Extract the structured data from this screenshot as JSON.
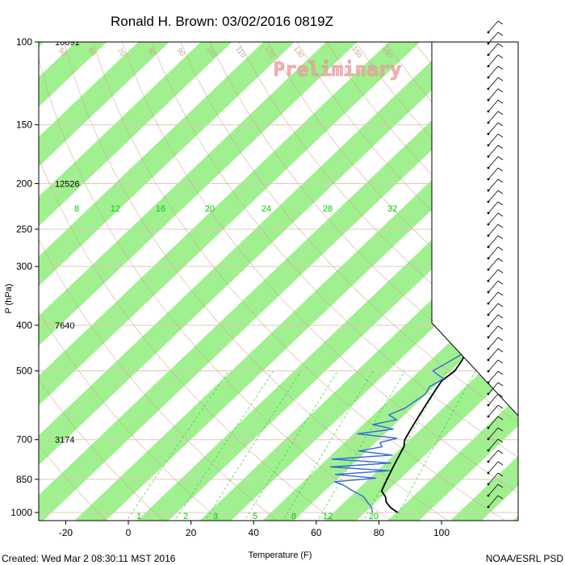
{
  "chart_data": {
    "type": "line",
    "title": "Ronald H. Brown: 03/02/2016 0819Z",
    "xlabel": "Temperature (F)",
    "ylabel": "P (hPa)",
    "watermark": "Preliminary",
    "xlim": [
      -30,
      125
    ],
    "ylim": [
      1050,
      100
    ],
    "y_scale": "log",
    "x_ticks": [
      -20,
      0,
      20,
      40,
      60,
      80,
      100
    ],
    "y_ticks": [
      100,
      150,
      200,
      250,
      300,
      400,
      500,
      700,
      850,
      1000
    ],
    "height_labels": [
      {
        "p": 100,
        "label": "16691"
      },
      {
        "p": 200,
        "label": "12526"
      },
      {
        "p": 400,
        "label": "7640"
      },
      {
        "p": 700,
        "label": "3174"
      }
    ],
    "mixing_ratio_labels": [
      "8",
      "12",
      "16",
      "20",
      "24",
      "28",
      "32"
    ],
    "mixing_ratio_bottom_labels": [
      "1",
      "2",
      "3",
      "5",
      "8",
      "12",
      "20"
    ],
    "theta_labels": [
      "50",
      "60",
      "70",
      "80",
      "90",
      "100",
      "110",
      "120",
      "130",
      "150",
      "160"
    ],
    "isotherm_labels": [
      "30",
      "20",
      "10",
      "0",
      "10",
      "20",
      "30"
    ],
    "colors": {
      "temperature": "#000000",
      "dewpoint": "#3366dd",
      "bands": "#a0f090",
      "mixing_ratio": "#33cc33",
      "dry_adiabat": "#c8a58a",
      "isobar": "#e0c8b8"
    },
    "series": [
      {
        "p": [
          1000,
          975,
          950,
          925,
          900,
          875,
          850,
          825,
          800,
          775,
          750,
          725,
          700,
          675,
          650,
          625,
          600,
          575,
          550,
          525,
          500,
          475,
          450,
          425,
          400,
          375,
          350,
          325,
          300,
          275,
          250,
          225,
          200,
          175,
          150,
          125,
          110,
          100
        ],
        "values": [
          86,
          82,
          79,
          77,
          74,
          73,
          72,
          71,
          70,
          69,
          68,
          67,
          65,
          64,
          63,
          62,
          61,
          60,
          59,
          58,
          59,
          58,
          56,
          54,
          53,
          52,
          50,
          49,
          48,
          46,
          43,
          39,
          32,
          29,
          29,
          28,
          26,
          25
        ]
      },
      {
        "p": [
          1000,
          975,
          950,
          925,
          900,
          875,
          860,
          845,
          830,
          815,
          800,
          785,
          770,
          755,
          740,
          725,
          710,
          695,
          680,
          665,
          650,
          635,
          620,
          600,
          580,
          560,
          540,
          520,
          500,
          480,
          460,
          440,
          420,
          400,
          380,
          360,
          340,
          320,
          300,
          280,
          260,
          240,
          220,
          200,
          180,
          160,
          140,
          125,
          110,
          100
        ],
        "values": [
          78,
          76,
          73,
          70,
          65,
          60,
          56,
          68,
          54,
          70,
          50,
          68,
          48,
          66,
          54,
          60,
          58,
          62,
          48,
          58,
          50,
          56,
          52,
          55,
          56,
          57,
          56,
          58,
          52,
          54,
          56,
          56,
          55,
          55,
          52,
          50,
          44,
          42,
          42,
          38,
          36,
          28,
          24,
          22,
          14,
          6,
          6,
          7,
          8,
          10
        ]
      }
    ]
  },
  "footer": {
    "created": "Created: Wed Mar  2 08:30:11 MST 2016",
    "source": "NOAA/ESRL PSD"
  }
}
